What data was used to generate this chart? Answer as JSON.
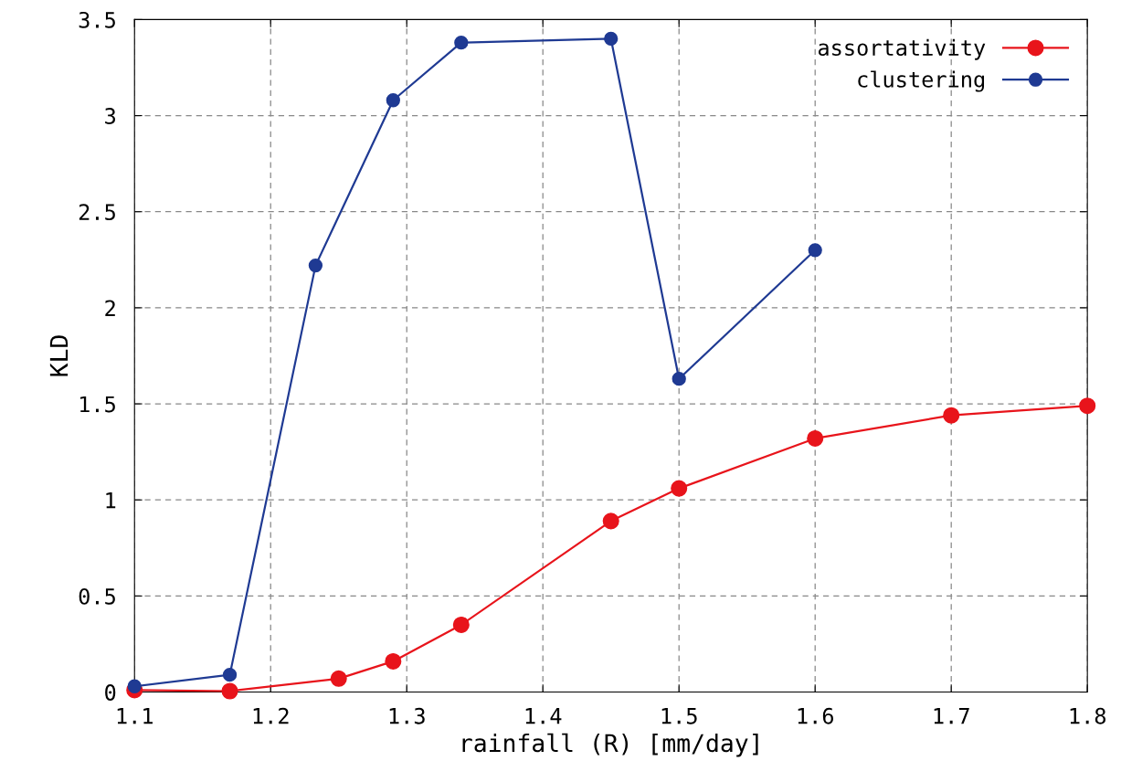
{
  "chart_data": {
    "type": "line",
    "xlabel": "rainfall (R) [mm/day]",
    "ylabel": "KLD",
    "series": [
      {
        "name": "assortativity",
        "color": "#e8141b",
        "x": [
          1.1,
          1.17,
          1.25,
          1.29,
          1.34,
          1.45,
          1.5,
          1.6,
          1.7,
          1.8
        ],
        "values": [
          0.01,
          0.005,
          0.07,
          0.16,
          0.35,
          0.89,
          1.06,
          1.32,
          1.44,
          1.49
        ]
      },
      {
        "name": "clustering",
        "color": "#1f3a93",
        "x": [
          1.1,
          1.17,
          1.233,
          1.29,
          1.34,
          1.45,
          1.5,
          1.6
        ],
        "values": [
          0.03,
          0.09,
          2.22,
          3.08,
          3.38,
          3.4,
          1.63,
          2.3
        ]
      }
    ],
    "xlim": [
      1.1,
      1.8
    ],
    "xticks": [
      1.1,
      1.2,
      1.3,
      1.4,
      1.5,
      1.6,
      1.7,
      1.8
    ],
    "ylim": [
      0,
      3.5
    ],
    "yticks": [
      0,
      0.5,
      1,
      1.5,
      2,
      2.5,
      3,
      3.5
    ],
    "grid": true,
    "legend": "top right",
    "marker": "circle",
    "line_style": "solid"
  }
}
